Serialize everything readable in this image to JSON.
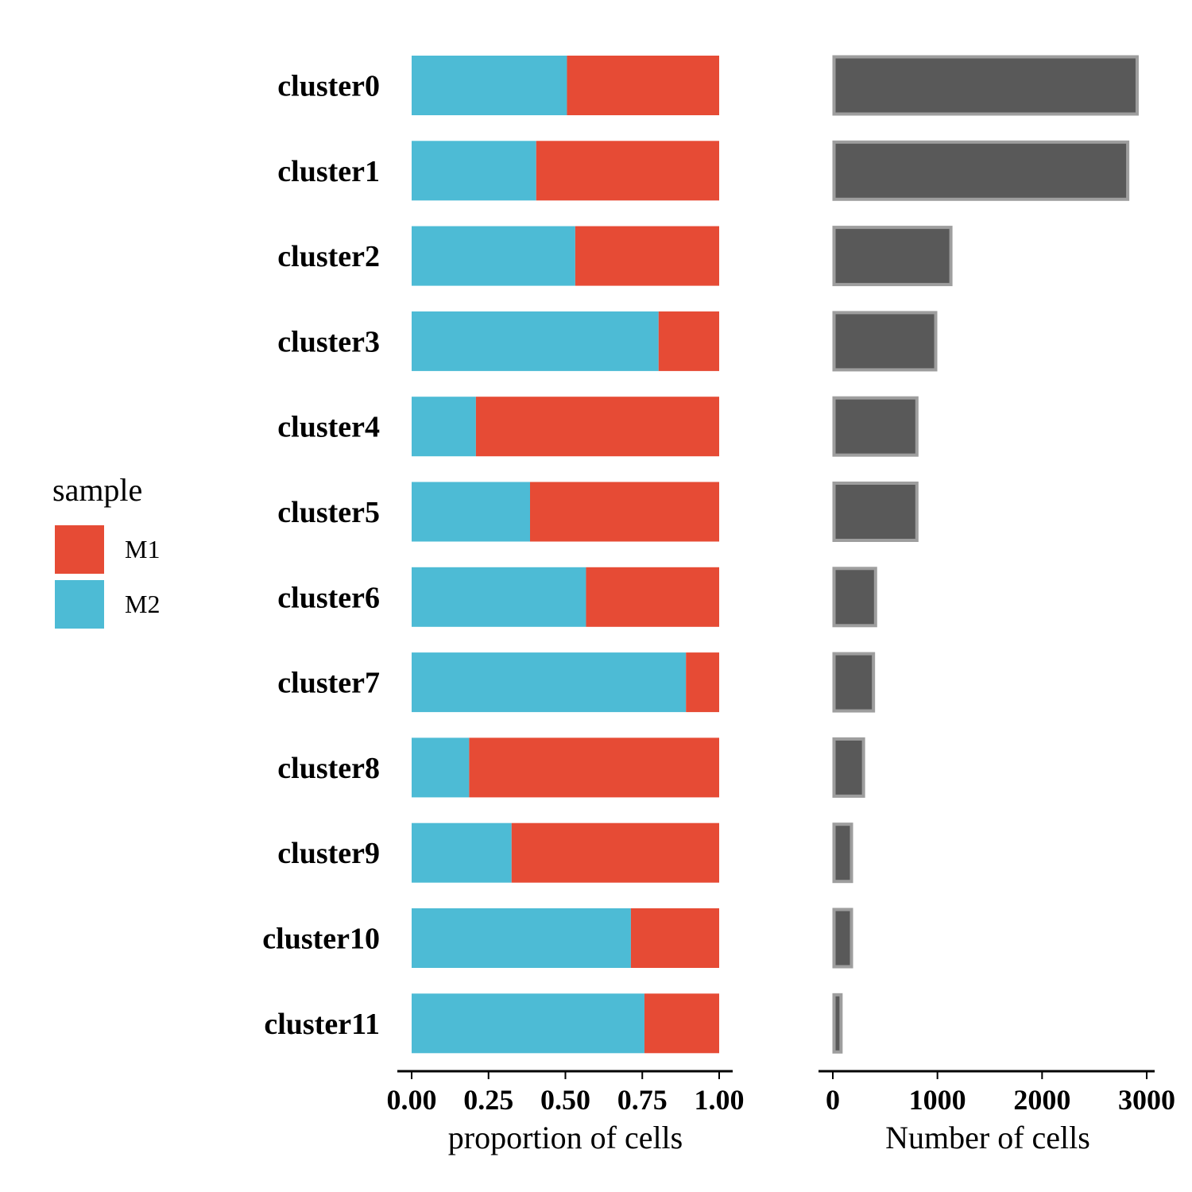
{
  "legend": {
    "title": "sample",
    "items": [
      {
        "label": "M1",
        "color": "#e64b35"
      },
      {
        "label": "M2",
        "color": "#4dbbd5"
      }
    ]
  },
  "chart_data": [
    {
      "type": "bar",
      "orientation": "horizontal",
      "stacked": true,
      "categories": [
        "cluster0",
        "cluster1",
        "cluster2",
        "cluster3",
        "cluster4",
        "cluster5",
        "cluster6",
        "cluster7",
        "cluster8",
        "cluster9",
        "cluster10",
        "cluster11"
      ],
      "series": [
        {
          "name": "M2",
          "color": "#4dbbd5",
          "values": [
            0.505,
            0.405,
            0.532,
            0.803,
            0.209,
            0.385,
            0.567,
            0.892,
            0.187,
            0.325,
            0.713,
            0.757
          ]
        },
        {
          "name": "M1",
          "color": "#e64b35",
          "values": [
            0.495,
            0.595,
            0.468,
            0.197,
            0.791,
            0.615,
            0.433,
            0.108,
            0.813,
            0.675,
            0.287,
            0.243
          ]
        }
      ],
      "xlabel": "proportion of cells",
      "xlim": [
        0,
        1
      ],
      "xticks": [
        0,
        0.25,
        0.5,
        0.75,
        1
      ],
      "xtick_labels": [
        "0.00",
        "0.25",
        "0.50",
        "0.75",
        "1.00"
      ],
      "grid": false
    },
    {
      "type": "bar",
      "orientation": "horizontal",
      "categories": [
        "cluster0",
        "cluster1",
        "cluster2",
        "cluster3",
        "cluster4",
        "cluster5",
        "cluster6",
        "cluster7",
        "cluster8",
        "cluster9",
        "cluster10",
        "cluster11"
      ],
      "values": [
        2920,
        2830,
        1140,
        995,
        815,
        815,
        420,
        400,
        305,
        190,
        190,
        90
      ],
      "fill_color": "#595959",
      "border_color": "#9e9e9e",
      "xlabel": "Number of cells",
      "xlim": [
        0,
        3000
      ],
      "xticks": [
        0,
        1000,
        2000,
        3000
      ],
      "xtick_labels": [
        "0",
        "1000",
        "2000",
        "3000"
      ],
      "grid": false
    }
  ]
}
